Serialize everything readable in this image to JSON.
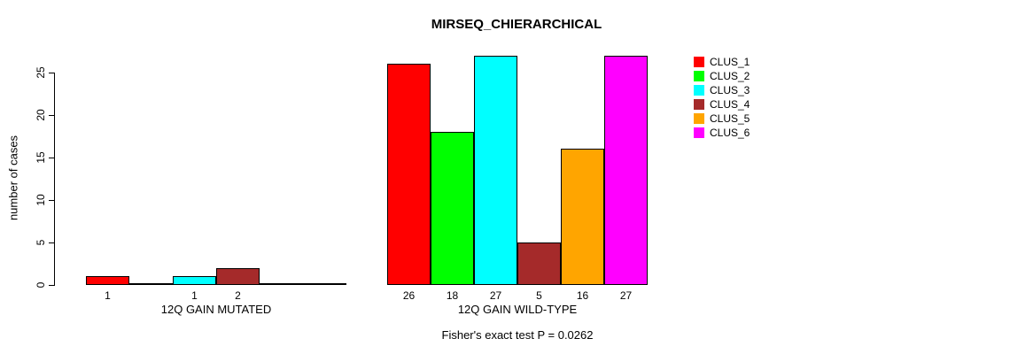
{
  "chart_data": {
    "type": "bar",
    "title": "MIRSEQ_CHIERARCHICAL",
    "ylabel": "number of cases",
    "yticks": [
      0,
      5,
      10,
      15,
      20,
      25
    ],
    "ylim": [
      0,
      27.5
    ],
    "grid": false,
    "legend_position": "right",
    "categories": [
      "CLUS_1",
      "CLUS_2",
      "CLUS_3",
      "CLUS_4",
      "CLUS_5",
      "CLUS_6"
    ],
    "colors": [
      "#ff0000",
      "#00ff00",
      "#00ffff",
      "#a52a2a",
      "#ffa500",
      "#ff00ff"
    ],
    "groups": [
      {
        "label": "12Q GAIN MUTATED",
        "values": [
          1,
          0,
          1,
          2,
          0,
          0
        ],
        "bar_labels": [
          "1",
          "",
          "1",
          "2",
          "",
          ""
        ]
      },
      {
        "label": "12Q GAIN WILD-TYPE",
        "values": [
          26,
          18,
          27,
          5,
          16,
          27
        ],
        "bar_labels": [
          "26",
          "18",
          "27",
          "5",
          "16",
          "27"
        ]
      }
    ],
    "footnote": "Fisher's exact test P = 0.0262"
  }
}
